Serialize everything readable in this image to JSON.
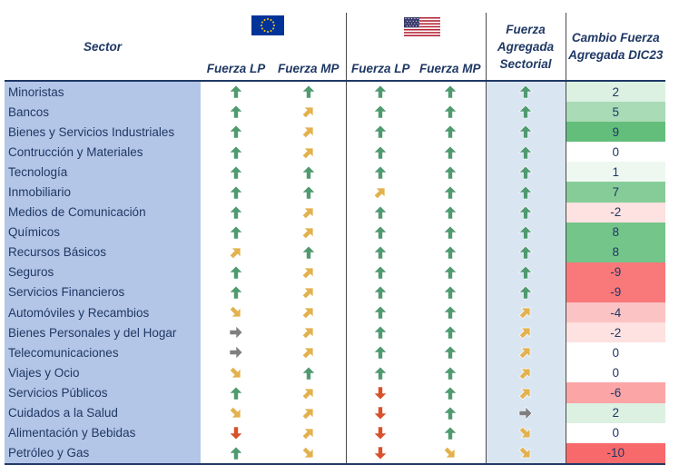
{
  "chart_data": {
    "type": "table",
    "headers": {
      "sector": "Sector",
      "eu_lp": "Fuerza LP",
      "eu_mp": "Fuerza MP",
      "us_lp": "Fuerza LP",
      "us_mp": "Fuerza MP",
      "aggregate": "Fuerza Agregada Sectorial",
      "change": "Cambio Fuerza Agregada DIC23"
    },
    "regions": [
      {
        "name": "Europa",
        "flag": "eu-flag"
      },
      {
        "name": "Estados Unidos",
        "flag": "us-flag"
      }
    ],
    "arrow_legend": {
      "up": "green-up-arrow-icon",
      "up_right": "orange-diagonal-up-arrow-icon",
      "right": "grey-right-arrow-icon",
      "down_right": "orange-diagonal-down-arrow-icon",
      "down": "red-down-arrow-icon"
    },
    "rows": [
      {
        "sector": "Minoristas",
        "eu_lp": "up",
        "eu_mp": "up",
        "us_lp": "up",
        "us_mp": "up",
        "aggregate": "up",
        "change": 2
      },
      {
        "sector": "Bancos",
        "eu_lp": "up",
        "eu_mp": "up_right",
        "us_lp": "up",
        "us_mp": "up",
        "aggregate": "up",
        "change": 5
      },
      {
        "sector": "Bienes y Servicios Industriales",
        "eu_lp": "up",
        "eu_mp": "up_right",
        "us_lp": "up",
        "us_mp": "up",
        "aggregate": "up",
        "change": 9
      },
      {
        "sector": "Contrucción y Materiales",
        "eu_lp": "up",
        "eu_mp": "up_right",
        "us_lp": "up",
        "us_mp": "up",
        "aggregate": "up",
        "change": 0
      },
      {
        "sector": "Tecnología",
        "eu_lp": "up",
        "eu_mp": "up",
        "us_lp": "up",
        "us_mp": "up",
        "aggregate": "up",
        "change": 1
      },
      {
        "sector": "Inmobiliario",
        "eu_lp": "up",
        "eu_mp": "up",
        "us_lp": "up_right",
        "us_mp": "up",
        "aggregate": "up",
        "change": 7
      },
      {
        "sector": "Medios de Comunicación",
        "eu_lp": "up",
        "eu_mp": "up_right",
        "us_lp": "up",
        "us_mp": "up",
        "aggregate": "up",
        "change": -2
      },
      {
        "sector": "Químicos",
        "eu_lp": "up",
        "eu_mp": "up_right",
        "us_lp": "up",
        "us_mp": "up",
        "aggregate": "up",
        "change": 8
      },
      {
        "sector": "Recursos Básicos",
        "eu_lp": "up_right",
        "eu_mp": "up",
        "us_lp": "up",
        "us_mp": "up",
        "aggregate": "up",
        "change": 8
      },
      {
        "sector": "Seguros",
        "eu_lp": "up",
        "eu_mp": "up_right",
        "us_lp": "up",
        "us_mp": "up",
        "aggregate": "up",
        "change": -9
      },
      {
        "sector": "Servicios Financieros",
        "eu_lp": "up",
        "eu_mp": "up_right",
        "us_lp": "up",
        "us_mp": "up",
        "aggregate": "up",
        "change": -9
      },
      {
        "sector": "Automóviles y Recambios",
        "eu_lp": "down_right",
        "eu_mp": "up_right",
        "us_lp": "up",
        "us_mp": "up",
        "aggregate": "up_right",
        "change": -4
      },
      {
        "sector": "Bienes Personales y del Hogar",
        "eu_lp": "right",
        "eu_mp": "up_right",
        "us_lp": "up",
        "us_mp": "up",
        "aggregate": "up_right",
        "change": -2
      },
      {
        "sector": "Telecomunicaciones",
        "eu_lp": "right",
        "eu_mp": "up_right",
        "us_lp": "up",
        "us_mp": "up",
        "aggregate": "up_right",
        "change": 0
      },
      {
        "sector": "Viajes y Ocio",
        "eu_lp": "down_right",
        "eu_mp": "up",
        "us_lp": "up",
        "us_mp": "up",
        "aggregate": "up_right",
        "change": 0
      },
      {
        "sector": "Servicios Públicos",
        "eu_lp": "up",
        "eu_mp": "up_right",
        "us_lp": "down",
        "us_mp": "up",
        "aggregate": "up_right",
        "change": -6
      },
      {
        "sector": "Cuidados a la Salud",
        "eu_lp": "down_right",
        "eu_mp": "up_right",
        "us_lp": "down",
        "us_mp": "up",
        "aggregate": "right",
        "change": 2
      },
      {
        "sector": "Alimentación y Bebidas",
        "eu_lp": "down",
        "eu_mp": "up_right",
        "us_lp": "down",
        "us_mp": "up",
        "aggregate": "down_right",
        "change": 0
      },
      {
        "sector": "Petróleo y Gas",
        "eu_lp": "up",
        "eu_mp": "down_right",
        "us_lp": "down",
        "us_mp": "down_right",
        "aggregate": "down_right",
        "change": -10
      }
    ],
    "change_scale": {
      "min": -10,
      "max": 9,
      "positive_color": "#63be7b",
      "negative_color": "#f8696b",
      "neutral_color": "#ffffff"
    }
  }
}
